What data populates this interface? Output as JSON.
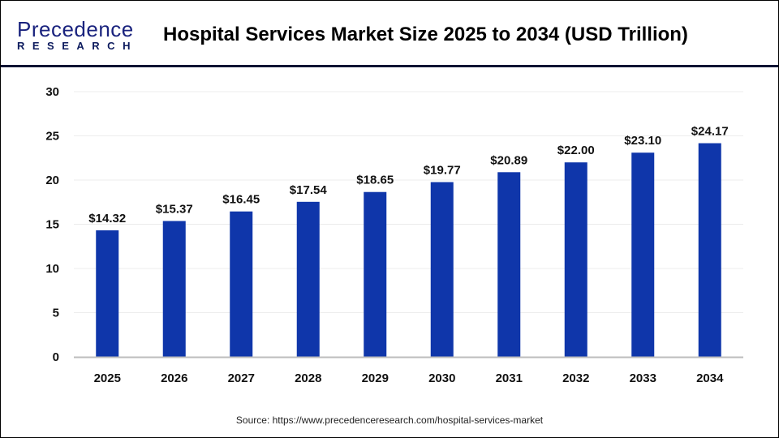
{
  "logo": {
    "line1": "Precedence",
    "line2": "RESEARCH"
  },
  "chart_data": {
    "type": "bar",
    "title": "Hospital Services Market Size 2025 to 2034 (USD Trillion)",
    "categories": [
      "2025",
      "2026",
      "2027",
      "2028",
      "2029",
      "2030",
      "2031",
      "2032",
      "2033",
      "2034"
    ],
    "values": [
      14.32,
      15.37,
      16.45,
      17.54,
      18.65,
      19.77,
      20.89,
      22.0,
      23.1,
      24.17
    ],
    "data_labels": [
      "$14.32",
      "$15.37",
      "$16.45",
      "$17.54",
      "$18.65",
      "$19.77",
      "$20.89",
      "$22.00",
      "$23.10",
      "$24.17"
    ],
    "ylim": [
      0,
      30
    ],
    "yticks": [
      "0",
      "5",
      "10",
      "15",
      "20",
      "25",
      "30"
    ],
    "grid": true,
    "bar_color": "#0f36aa",
    "xlabel": "",
    "ylabel": ""
  },
  "source": "Source: https://www.precedenceresearch.com/hospital-services-market"
}
